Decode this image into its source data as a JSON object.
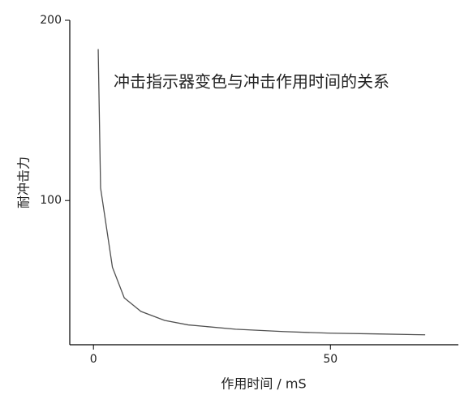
{
  "chart_data": {
    "type": "line",
    "annotation": "冲击指示器变色与冲击作用时间的关系",
    "x_label": "作用时间 / mS",
    "y_label": "耐冲击力",
    "series": [
      {
        "color": "#505050",
        "x": [
          1,
          1.5,
          4,
          6.5,
          10,
          15,
          20,
          30,
          40,
          50,
          60,
          70
        ],
        "values": [
          184,
          107,
          63,
          46,
          38.5,
          33.5,
          31,
          28.6,
          27.3,
          26.4,
          26,
          25.5
        ]
      }
    ],
    "xlim": [
      -5,
      77
    ],
    "ylim": [
      20,
      200
    ],
    "xticks": [
      0,
      50
    ],
    "yticks": [
      100,
      200
    ]
  }
}
